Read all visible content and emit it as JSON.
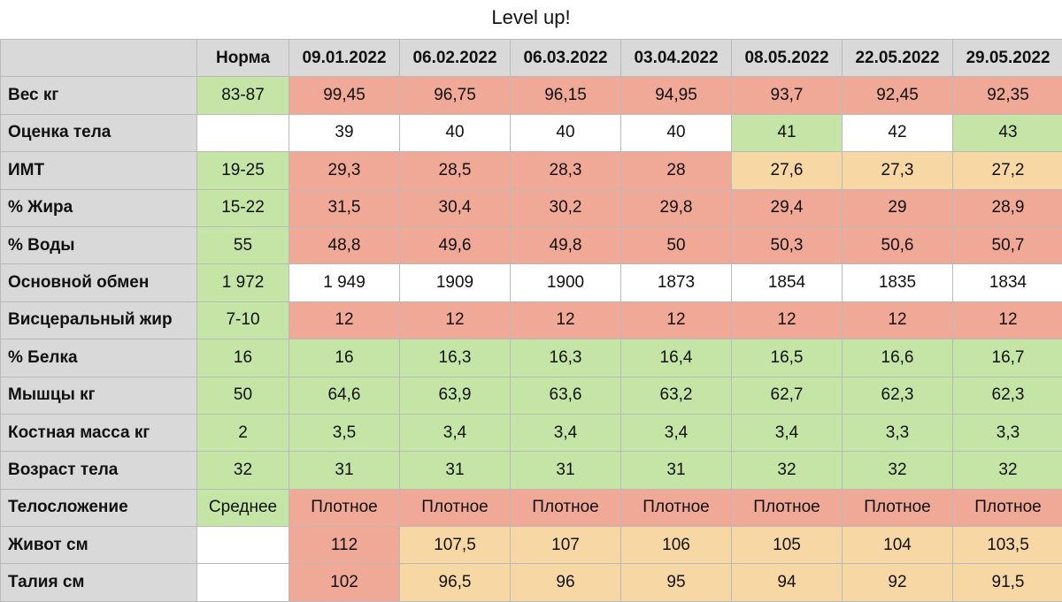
{
  "title": "Level up!",
  "colors": {
    "good": "#c4e5a5",
    "bad": "#f0a897",
    "warn": "#f7d7a3",
    "neutral": "#ffffff",
    "header": "#d9d9d9"
  },
  "headers": [
    "",
    "Норма",
    "09.01.2022",
    "06.02.2022",
    "06.03.2022",
    "03.04.2022",
    "08.05.2022",
    "22.05.2022",
    "29.05.2022"
  ],
  "rows": [
    {
      "label": "Вес кг",
      "values": [
        "83-87",
        "99,45",
        "96,75",
        "96,15",
        "94,95",
        "93,7",
        "92,45",
        "92,35"
      ],
      "status": [
        "g",
        "r",
        "r",
        "r",
        "r",
        "r",
        "r",
        "r"
      ]
    },
    {
      "label": "Оценка тела",
      "values": [
        "",
        "39",
        "40",
        "40",
        "40",
        "41",
        "42",
        "43"
      ],
      "status": [
        "w",
        "w",
        "w",
        "w",
        "w",
        "g",
        "w",
        "g"
      ]
    },
    {
      "label": "ИМТ",
      "values": [
        "19-25",
        "29,3",
        "28,5",
        "28,3",
        "28",
        "27,6",
        "27,3",
        "27,2"
      ],
      "status": [
        "g",
        "r",
        "r",
        "r",
        "r",
        "o",
        "o",
        "o"
      ]
    },
    {
      "label": "% Жира",
      "values": [
        "15-22",
        "31,5",
        "30,4",
        "30,2",
        "29,8",
        "29,4",
        "29",
        "28,9"
      ],
      "status": [
        "g",
        "r",
        "r",
        "r",
        "r",
        "r",
        "r",
        "r"
      ]
    },
    {
      "label": "% Воды",
      "values": [
        "55",
        "48,8",
        "49,6",
        "49,8",
        "50",
        "50,3",
        "50,6",
        "50,7"
      ],
      "status": [
        "g",
        "r",
        "r",
        "r",
        "r",
        "r",
        "r",
        "r"
      ]
    },
    {
      "label": "Основной обмен",
      "values": [
        "1 972",
        "1 949",
        "1909",
        "1900",
        "1873",
        "1854",
        "1835",
        "1834"
      ],
      "status": [
        "g",
        "w",
        "w",
        "w",
        "w",
        "w",
        "w",
        "w"
      ]
    },
    {
      "label": "Висцеральный жир",
      "values": [
        "7-10",
        "12",
        "12",
        "12",
        "12",
        "12",
        "12",
        "12"
      ],
      "status": [
        "g",
        "r",
        "r",
        "r",
        "r",
        "r",
        "r",
        "r"
      ]
    },
    {
      "label": "% Белка",
      "values": [
        "16",
        "16",
        "16,3",
        "16,3",
        "16,4",
        "16,5",
        "16,6",
        "16,7"
      ],
      "status": [
        "g",
        "g",
        "g",
        "g",
        "g",
        "g",
        "g",
        "g"
      ]
    },
    {
      "label": "Мышцы кг",
      "values": [
        "50",
        "64,6",
        "63,9",
        "63,6",
        "63,2",
        "62,7",
        "62,3",
        "62,3"
      ],
      "status": [
        "g",
        "g",
        "g",
        "g",
        "g",
        "g",
        "g",
        "g"
      ]
    },
    {
      "label": "Костная масса кг",
      "values": [
        "2",
        "3,5",
        "3,4",
        "3,4",
        "3,4",
        "3,4",
        "3,3",
        "3,3"
      ],
      "status": [
        "g",
        "g",
        "g",
        "g",
        "g",
        "g",
        "g",
        "g"
      ]
    },
    {
      "label": "Возраст тела",
      "values": [
        "32",
        "31",
        "31",
        "31",
        "31",
        "32",
        "32",
        "32"
      ],
      "status": [
        "g",
        "g",
        "g",
        "g",
        "g",
        "g",
        "g",
        "g"
      ]
    },
    {
      "label": "Телосложение",
      "values": [
        "Среднее",
        "Плотное",
        "Плотное",
        "Плотное",
        "Плотное",
        "Плотное",
        "Плотное",
        "Плотное"
      ],
      "status": [
        "g",
        "r",
        "r",
        "r",
        "r",
        "r",
        "r",
        "r"
      ]
    },
    {
      "label": "Живот см",
      "values": [
        "",
        "112",
        "107,5",
        "107",
        "106",
        "105",
        "104",
        "103,5"
      ],
      "status": [
        "w",
        "r",
        "o",
        "o",
        "o",
        "o",
        "o",
        "o"
      ]
    },
    {
      "label": "Талия см",
      "values": [
        "",
        "102",
        "96,5",
        "96",
        "95",
        "94",
        "92",
        "91,5"
      ],
      "status": [
        "w",
        "r",
        "o",
        "o",
        "o",
        "o",
        "o",
        "o"
      ]
    }
  ]
}
